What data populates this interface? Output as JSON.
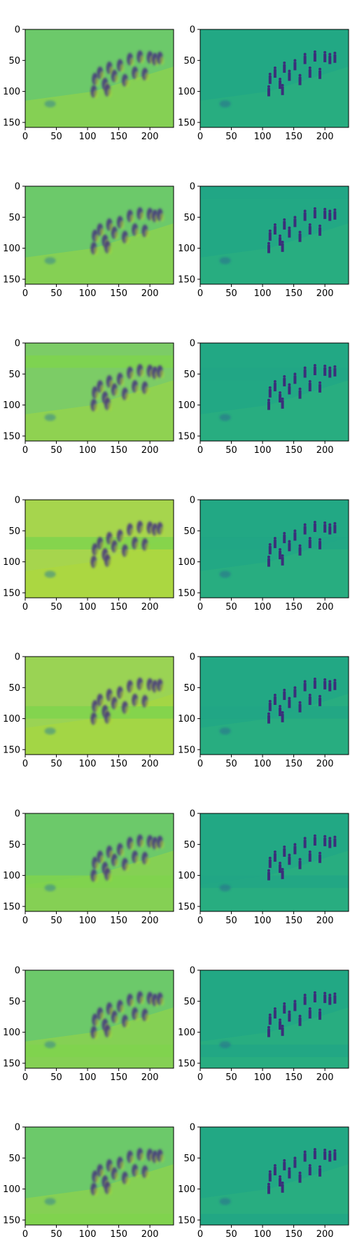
{
  "figure": {
    "layout": {
      "rows": 8,
      "cols": 2
    },
    "colormap": "viridis"
  },
  "chart_data": {
    "type": "heatmap",
    "x_ticks": [
      0,
      50,
      100,
      150,
      200
    ],
    "y_ticks": [
      0,
      50,
      100,
      150
    ],
    "xlim": [
      0,
      238
    ],
    "ylim": [
      158,
      0
    ],
    "panels": [
      {
        "row": 0,
        "col": 0,
        "variant": "reconstruction",
        "base_color": "#6cc96a",
        "band": null
      },
      {
        "row": 0,
        "col": 1,
        "variant": "residual",
        "base_color": "#22a884",
        "band": null
      },
      {
        "row": 1,
        "col": 0,
        "variant": "reconstruction",
        "base_color": "#6cc96a",
        "band": null
      },
      {
        "row": 1,
        "col": 1,
        "variant": "residual",
        "base_color": "#22a884",
        "band": [
          0,
          20
        ]
      },
      {
        "row": 2,
        "col": 0,
        "variant": "reconstruction",
        "base_color": "#7ccc66",
        "band": [
          20,
          40
        ]
      },
      {
        "row": 2,
        "col": 1,
        "variant": "residual",
        "base_color": "#22a884",
        "band": [
          40,
          60
        ]
      },
      {
        "row": 3,
        "col": 0,
        "variant": "reconstruction",
        "base_color": "#a6d54d",
        "band": [
          60,
          80
        ]
      },
      {
        "row": 3,
        "col": 1,
        "variant": "residual",
        "base_color": "#22a884",
        "band": [
          60,
          80
        ]
      },
      {
        "row": 4,
        "col": 0,
        "variant": "reconstruction",
        "base_color": "#9ad354",
        "band": [
          80,
          100
        ]
      },
      {
        "row": 4,
        "col": 1,
        "variant": "residual",
        "base_color": "#22a884",
        "band": [
          80,
          100
        ]
      },
      {
        "row": 5,
        "col": 0,
        "variant": "reconstruction",
        "base_color": "#6cc96a",
        "band": [
          100,
          120
        ]
      },
      {
        "row": 5,
        "col": 1,
        "variant": "residual",
        "base_color": "#22a884",
        "band": [
          100,
          120
        ]
      },
      {
        "row": 6,
        "col": 0,
        "variant": "reconstruction",
        "base_color": "#6cc96a",
        "band": [
          120,
          140
        ]
      },
      {
        "row": 6,
        "col": 1,
        "variant": "residual",
        "base_color": "#22a884",
        "band": [
          120,
          140
        ]
      },
      {
        "row": 7,
        "col": 0,
        "variant": "reconstruction",
        "base_color": "#6cc96a",
        "band": [
          140,
          158
        ]
      },
      {
        "row": 7,
        "col": 1,
        "variant": "residual",
        "base_color": "#22a884",
        "band": [
          140,
          158
        ]
      }
    ],
    "figures": [
      {
        "x": 112,
        "y": 80
      },
      {
        "x": 120,
        "y": 70
      },
      {
        "x": 128,
        "y": 88
      },
      {
        "x": 135,
        "y": 62
      },
      {
        "x": 143,
        "y": 75
      },
      {
        "x": 152,
        "y": 58
      },
      {
        "x": 160,
        "y": 82
      },
      {
        "x": 168,
        "y": 48
      },
      {
        "x": 176,
        "y": 70
      },
      {
        "x": 184,
        "y": 44
      },
      {
        "x": 192,
        "y": 72
      },
      {
        "x": 200,
        "y": 45
      },
      {
        "x": 208,
        "y": 48
      },
      {
        "x": 216,
        "y": 46
      },
      {
        "x": 110,
        "y": 100
      },
      {
        "x": 132,
        "y": 98
      }
    ],
    "left_blob": {
      "x": 40,
      "y": 120
    }
  }
}
